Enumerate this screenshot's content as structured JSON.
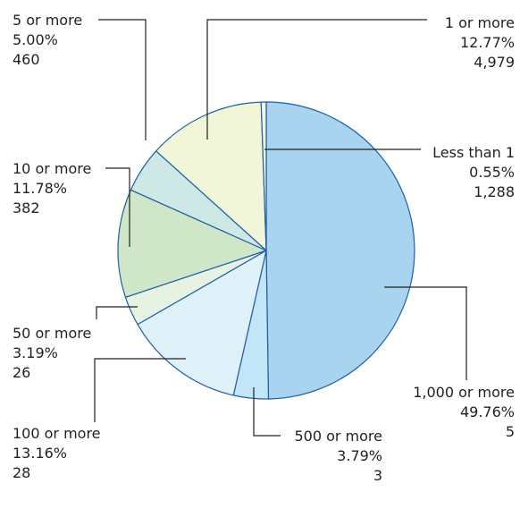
{
  "chart_data": {
    "type": "pie",
    "slices": [
      {
        "category": "1,000 or more",
        "percent_label": "49.76%",
        "count": "5",
        "value": 49.76,
        "color": "#a9d4ef"
      },
      {
        "category": "500 or more",
        "percent_label": "3.79%",
        "count": "3",
        "value": 3.79,
        "color": "#c2e5f7"
      },
      {
        "category": "100 or more",
        "percent_label": "13.16%",
        "count": "28",
        "value": 13.16,
        "color": "#dff2fa"
      },
      {
        "category": "50 or more",
        "percent_label": "3.19%",
        "count": "26",
        "value": 3.19,
        "color": "#e6f3e2"
      },
      {
        "category": "10 or more",
        "percent_label": "11.78%",
        "count": "382",
        "value": 11.78,
        "color": "#cfe6c8"
      },
      {
        "category": "5 or more",
        "percent_label": "5.00%",
        "count": "460",
        "value": 5.0,
        "color": "#cde8e5"
      },
      {
        "category": "1 or more",
        "percent_label": "12.77%",
        "count": "4,979",
        "value": 12.77,
        "color": "#f2f6d8"
      },
      {
        "category": "Less than 1",
        "percent_label": "0.55%",
        "count": "1,288",
        "value": 0.55,
        "color": "#f6f9df"
      }
    ]
  }
}
